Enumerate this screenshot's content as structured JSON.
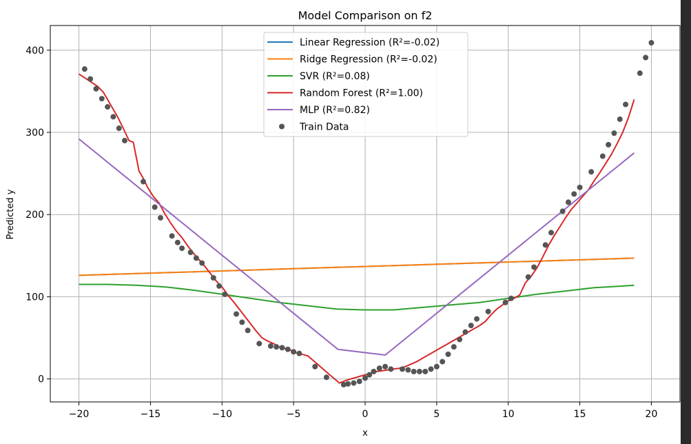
{
  "chart_data": {
    "type": "line",
    "title": "Model Comparison on f2",
    "xlabel": "x",
    "ylabel": "Predicted y",
    "xlim": [
      -22.0,
      22.0
    ],
    "ylim": [
      -28,
      430
    ],
    "xticks": [
      -20,
      -15,
      -10,
      -5,
      0,
      5,
      10,
      15,
      20
    ],
    "xtick_labels": [
      "−20",
      "−15",
      "−10",
      "−5",
      "0",
      "5",
      "10",
      "15",
      "20"
    ],
    "yticks": [
      0,
      100,
      200,
      300,
      400
    ],
    "ytick_labels": [
      "0",
      "100",
      "200",
      "300",
      "400"
    ],
    "grid": true,
    "legend_position": "upper center",
    "series": [
      {
        "name": "Linear Regression (R²=-0.02)",
        "color": "#1f77b4",
        "x": [
          -20,
          18.8
        ],
        "y": [
          126,
          147
        ]
      },
      {
        "name": "Ridge Regression (R²=-0.02)",
        "color": "#ff7f0e",
        "x": [
          -20,
          18.8
        ],
        "y": [
          126,
          147
        ]
      },
      {
        "name": "SVR (R²=0.08)",
        "color": "#2ca02c",
        "x": [
          -20,
          -18,
          -16,
          -14,
          -12,
          -10,
          -8,
          -6,
          -4,
          -2,
          0,
          2,
          4,
          6,
          8,
          10,
          12,
          14,
          16,
          18,
          18.8
        ],
        "y": [
          115,
          115,
          114,
          112,
          108,
          103,
          98,
          93,
          89,
          85,
          84,
          84,
          87,
          90,
          93,
          98,
          103,
          107,
          111,
          113,
          114
        ]
      },
      {
        "name": "Random Forest (R²=1.00)",
        "color": "#d62728",
        "x": [
          -20,
          -18.7,
          -18.3,
          -17.8,
          -17.3,
          -16.9,
          -16.5,
          -16.2,
          -15.8,
          -15.5,
          -15.2,
          -14.8,
          -14.4,
          -14,
          -13.6,
          -13.2,
          -12.8,
          -12.4,
          -12,
          -11.6,
          -11.2,
          -10.8,
          -10.4,
          -10,
          -9.6,
          -9.2,
          -8.8,
          -8.4,
          -8,
          -7.6,
          -7.2,
          -6.8,
          -6.4,
          -6,
          -5.6,
          -5.2,
          -4.8,
          -4.4,
          -4,
          -3.6,
          -3.2,
          -2.8,
          -2.4,
          -2,
          -1.8,
          -1.5,
          -1.2,
          -0.8,
          -0.4,
          0,
          0.4,
          0.8,
          1.2,
          1.6,
          2,
          2.4,
          2.8,
          3.2,
          3.6,
          4,
          4.4,
          4.8,
          5.2,
          5.6,
          6,
          6.4,
          6.8,
          7.2,
          7.6,
          8,
          8.4,
          8.8,
          9.2,
          9.6,
          10,
          10.4,
          10.8,
          11.2,
          11.6,
          12,
          12.4,
          12.8,
          13.2,
          13.6,
          14,
          14.4,
          14.8,
          15.2,
          15.6,
          16,
          16.4,
          16.8,
          17.2,
          17.6,
          18,
          18.4,
          18.8
        ],
        "y": [
          371,
          356,
          349,
          334,
          319,
          305,
          290,
          288,
          253,
          244,
          233,
          222,
          214,
          201,
          190,
          180,
          172,
          162,
          153,
          145,
          137,
          128,
          119,
          112,
          102,
          94,
          85,
          76,
          67,
          58,
          50,
          46,
          43,
          39,
          37,
          35,
          32,
          30,
          28,
          22,
          16,
          10,
          4,
          -2,
          -5,
          -3,
          -1,
          1,
          3,
          5,
          7,
          9,
          10,
          11,
          12,
          13,
          15,
          18,
          21,
          25,
          29,
          33,
          37,
          41,
          45,
          49,
          53,
          57,
          61,
          65,
          70,
          78,
          85,
          90,
          95,
          98,
          102,
          117,
          125,
          135,
          148,
          162,
          174,
          185,
          196,
          206,
          214,
          222,
          230,
          241,
          251,
          262,
          273,
          286,
          300,
          318,
          340
        ]
      },
      {
        "name": "MLP (R²=0.82)",
        "color": "#9467bd",
        "x": [
          -20,
          -1.9,
          1.4,
          18.8
        ],
        "y": [
          292,
          36,
          29,
          275
        ]
      },
      {
        "name": "Train Data",
        "type": "scatter",
        "color": "#555555",
        "x": [
          -19.6,
          -19.2,
          -18.8,
          -18.4,
          -18,
          -17.6,
          -17.2,
          -16.8,
          -15.5,
          -14.7,
          -14.3,
          -13.5,
          -13.1,
          -12.8,
          -12.2,
          -11.8,
          -11.4,
          -10.6,
          -10.2,
          -9.8,
          -9,
          -8.6,
          -8.2,
          -7.4,
          -6.6,
          -6.2,
          -5.8,
          -5.4,
          -5,
          -4.6,
          -3.5,
          -2.7,
          -1.5,
          -1.2,
          -0.8,
          -0.4,
          0,
          0.3,
          0.6,
          1,
          1.4,
          1.8,
          2.6,
          3,
          3.4,
          3.8,
          4.2,
          4.6,
          5,
          5.4,
          5.8,
          6.2,
          6.6,
          7,
          7.4,
          7.8,
          8.6,
          9.8,
          10.2,
          11.4,
          11.8,
          12.6,
          13,
          13.8,
          14.2,
          14.6,
          15,
          15.8,
          16.6,
          17,
          17.4,
          17.8,
          18.2,
          19.2,
          19.6,
          20
        ],
        "y": [
          377,
          365,
          353,
          341,
          331,
          319,
          305,
          290,
          240,
          209,
          196,
          174,
          166,
          159,
          154,
          147,
          141,
          123,
          113,
          103,
          79,
          69,
          59,
          43,
          40,
          39,
          38,
          36,
          33,
          31,
          15,
          2,
          -7,
          -6,
          -5,
          -3,
          1,
          5,
          9,
          13,
          15,
          12,
          12,
          11,
          9,
          9,
          9,
          12,
          15,
          21,
          30,
          39,
          48,
          57,
          65,
          73,
          82,
          93,
          98,
          124,
          136,
          163,
          178,
          204,
          215,
          225,
          233,
          252,
          271,
          285,
          299,
          316,
          334,
          372,
          391,
          409
        ]
      }
    ]
  }
}
